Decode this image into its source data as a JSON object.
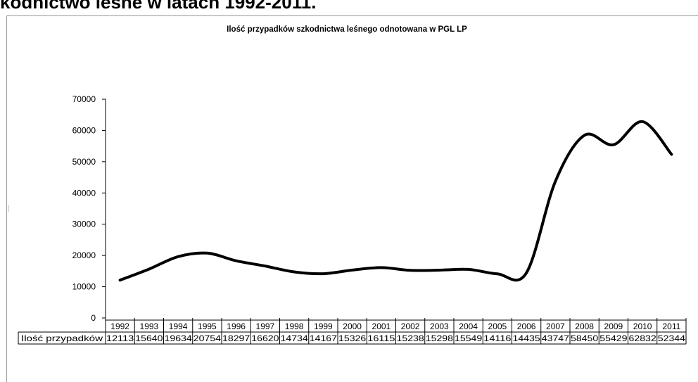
{
  "page": {
    "heading": "kodnictwo leśne w latach 1992-2011."
  },
  "chart_data": {
    "type": "line",
    "title": "Ilość  przypadków  szkodnictwa leśnego  odnotowana  w PGL LP",
    "xlabel": "",
    "ylabel": "",
    "ylim": [
      0,
      70000
    ],
    "y_ticks": [
      0,
      10000,
      20000,
      30000,
      40000,
      50000,
      60000,
      70000
    ],
    "y_tick_labels": [
      "0",
      "10000",
      "20000",
      "30000",
      "40000",
      "50000",
      "60000",
      "70000"
    ],
    "categories": [
      "1992",
      "1993",
      "1994",
      "1995",
      "1996",
      "1997",
      "1998",
      "1999",
      "2000",
      "2001",
      "2002",
      "2003",
      "2004",
      "2005",
      "2006",
      "2007",
      "2008",
      "2009",
      "2010",
      "2011"
    ],
    "series": [
      {
        "name": "Ilość przypadków",
        "values": [
          12113,
          15640,
          19634,
          20754,
          18297,
          16620,
          14734,
          14167,
          15326,
          16115,
          15238,
          15298,
          15549,
          14116,
          14435,
          43747,
          58450,
          55429,
          62832,
          52344
        ],
        "value_labels": [
          "12113",
          "15640",
          "19634",
          "20754",
          "18297",
          "16620",
          "14734",
          "14167",
          "15326",
          "16115",
          "15238",
          "15298",
          "15549",
          "14116",
          "14435",
          "43747",
          "58450",
          "55429",
          "62832",
          "52344"
        ]
      }
    ],
    "data_table": true,
    "legend": "none",
    "grid": false,
    "line_color": "#000000"
  }
}
